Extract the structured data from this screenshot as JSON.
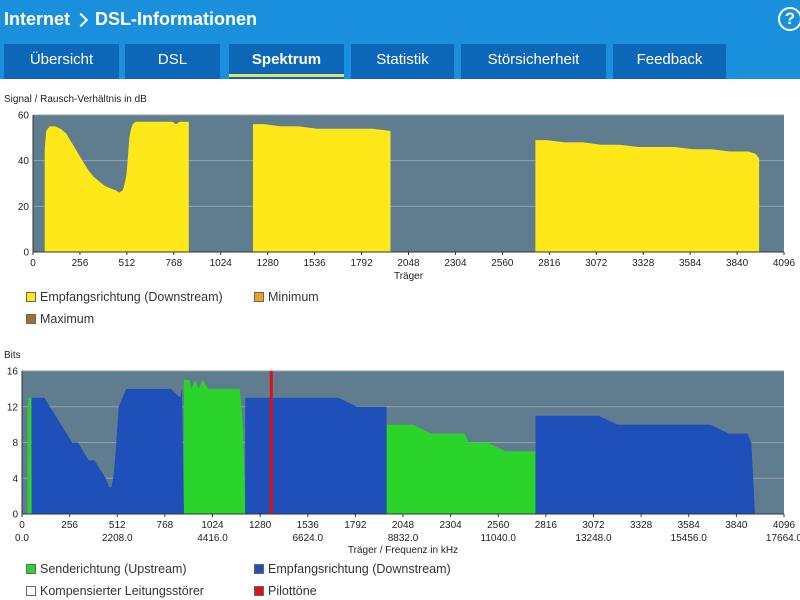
{
  "header": {
    "breadcrumb_root": "Internet",
    "breadcrumb_page": "DSL-Informationen",
    "help_label": "?"
  },
  "tabs": [
    {
      "label": "Übersicht",
      "active": false
    },
    {
      "label": "DSL",
      "active": false
    },
    {
      "label": "Spektrum",
      "active": true
    },
    {
      "label": "Statistik",
      "active": false
    },
    {
      "label": "Störsicherheit",
      "active": false
    },
    {
      "label": "Feedback",
      "active": false
    }
  ],
  "legend_snr": {
    "downstream": "Empfangsrichtung (Downstream)",
    "minimum": "Minimum",
    "maximum": "Maximum"
  },
  "legend_bits": {
    "upstream": "Senderichtung (Upstream)",
    "downstream": "Empfangsrichtung (Downstream)",
    "compensated": "Kompensierter Leitungsstörer",
    "pilot": "Pilottöne"
  },
  "colors": {
    "header": "#1a8fdc",
    "tab": "#0d67b9",
    "plot_bg": "#607d8f",
    "snr_fill": "#ffe81a",
    "minimum": "#f0a020",
    "maximum": "#a07030",
    "downstream": "#1f4fb8",
    "upstream": "#2ad42a",
    "compensated": "#ffffff",
    "pilot": "#e01010"
  },
  "chart_data": [
    {
      "type": "area",
      "title": "Signal / Rausch-Verhältnis in dB",
      "xlabel": "Träger",
      "xlim": [
        0,
        4096
      ],
      "ylim": [
        0,
        60
      ],
      "x_ticks": [
        0,
        256,
        512,
        768,
        1024,
        1280,
        1536,
        1792,
        2048,
        2304,
        2560,
        2816,
        3072,
        3328,
        3584,
        3840,
        4096
      ],
      "y_ticks": [
        0,
        20,
        40,
        60
      ],
      "series": [
        {
          "name": "Empfangsrichtung (Downstream)",
          "segments": [
            [
              [
                64,
                0
              ],
              [
                64,
                45
              ],
              [
                72,
                53
              ],
              [
                90,
                55
              ],
              [
                120,
                55
              ],
              [
                150,
                54
              ],
              [
                180,
                52
              ],
              [
                210,
                48
              ],
              [
                240,
                44
              ],
              [
                270,
                40
              ],
              [
                300,
                36
              ],
              [
                330,
                33
              ],
              [
                360,
                31
              ],
              [
                390,
                29
              ],
              [
                420,
                28
              ],
              [
                450,
                27
              ],
              [
                470,
                26
              ],
              [
                490,
                27
              ],
              [
                500,
                30
              ],
              [
                510,
                34
              ],
              [
                518,
                42
              ],
              [
                525,
                50
              ],
              [
                535,
                54
              ],
              [
                545,
                56
              ],
              [
                560,
                57
              ],
              [
                600,
                57
              ],
              [
                650,
                57
              ],
              [
                700,
                57
              ],
              [
                760,
                57
              ],
              [
                780,
                56
              ],
              [
                800,
                57
              ],
              [
                850,
                57
              ],
              [
                850,
                0
              ]
            ],
            [
              [
                1200,
                0
              ],
              [
                1200,
                56
              ],
              [
                1260,
                56
              ],
              [
                1350,
                55
              ],
              [
                1450,
                55
              ],
              [
                1550,
                54
              ],
              [
                1650,
                54
              ],
              [
                1750,
                54
              ],
              [
                1850,
                54
              ],
              [
                1950,
                53
              ],
              [
                1950,
                0
              ]
            ],
            [
              [
                2740,
                0
              ],
              [
                2740,
                49
              ],
              [
                2800,
                49
              ],
              [
                2900,
                48
              ],
              [
                3000,
                48
              ],
              [
                3100,
                47
              ],
              [
                3200,
                47
              ],
              [
                3300,
                46
              ],
              [
                3400,
                46
              ],
              [
                3500,
                46
              ],
              [
                3600,
                45
              ],
              [
                3700,
                45
              ],
              [
                3800,
                44
              ],
              [
                3900,
                44
              ],
              [
                3940,
                43
              ],
              [
                3960,
                41
              ],
              [
                3960,
                0
              ]
            ]
          ]
        }
      ]
    },
    {
      "type": "area",
      "title": "Bits",
      "xlabel": "Träger / Frequenz in kHz",
      "xlim": [
        0,
        4096
      ],
      "ylim": [
        0,
        16
      ],
      "x_ticks": [
        0,
        256,
        512,
        768,
        1024,
        1280,
        1536,
        1792,
        2048,
        2304,
        2560,
        2816,
        3072,
        3328,
        3584,
        3840,
        4096
      ],
      "x_freq_ticks": [
        "0.0",
        "2208.0",
        "4416.0",
        "6624.0",
        "8832.0",
        "11040.0",
        "13248.0",
        "15456.0",
        "17664.0"
      ],
      "y_ticks": [
        0,
        4,
        8,
        12,
        16
      ],
      "pilot_tone_x": 1340,
      "series": [
        {
          "name": "Senderichtung (Upstream)",
          "segments": [
            [
              [
                30,
                0
              ],
              [
                30,
                12
              ],
              [
                35,
                13
              ],
              [
                48,
                13
              ],
              [
                52,
                0
              ]
            ],
            [
              [
                870,
                0
              ],
              [
                870,
                15
              ],
              [
                900,
                15
              ],
              [
                910,
                14
              ],
              [
                930,
                15
              ],
              [
                950,
                14
              ],
              [
                970,
                15
              ],
              [
                1000,
                14
              ],
              [
                1100,
                14
              ],
              [
                1170,
                14
              ],
              [
                1180,
                12
              ],
              [
                1190,
                9
              ],
              [
                1200,
                0
              ]
            ],
            [
              [
                1960,
                0
              ],
              [
                1960,
                10
              ],
              [
                2000,
                10
              ],
              [
                2100,
                10
              ],
              [
                2200,
                9
              ],
              [
                2300,
                9
              ],
              [
                2380,
                9
              ],
              [
                2400,
                8
              ],
              [
                2500,
                8
              ],
              [
                2600,
                7
              ],
              [
                2700,
                7
              ],
              [
                2760,
                7
              ],
              [
                2760,
                0
              ]
            ]
          ]
        },
        {
          "name": "Empfangsrichtung (Downstream)",
          "segments": [
            [
              [
                52,
                0
              ],
              [
                52,
                13
              ],
              [
                80,
                13
              ],
              [
                120,
                13
              ],
              [
                150,
                12
              ],
              [
                180,
                11
              ],
              [
                210,
                10
              ],
              [
                240,
                9
              ],
              [
                270,
                8
              ],
              [
                300,
                8
              ],
              [
                330,
                7
              ],
              [
                360,
                6
              ],
              [
                390,
                6
              ],
              [
                420,
                5
              ],
              [
                450,
                4
              ],
              [
                470,
                3
              ],
              [
                480,
                3
              ],
              [
                490,
                4
              ],
              [
                500,
                6
              ],
              [
                510,
                9
              ],
              [
                520,
                12
              ],
              [
                540,
                13
              ],
              [
                560,
                14
              ],
              [
                600,
                14
              ],
              [
                700,
                14
              ],
              [
                800,
                14
              ],
              [
                850,
                13
              ],
              [
                860,
                14
              ],
              [
                870,
                0
              ]
            ],
            [
              [
                1200,
                0
              ],
              [
                1200,
                13
              ],
              [
                1300,
                13
              ],
              [
                1400,
                13
              ],
              [
                1500,
                13
              ],
              [
                1600,
                13
              ],
              [
                1700,
                13
              ],
              [
                1800,
                12
              ],
              [
                1900,
                12
              ],
              [
                1960,
                12
              ],
              [
                1960,
                0
              ]
            ],
            [
              [
                2760,
                0
              ],
              [
                2760,
                11
              ],
              [
                2900,
                11
              ],
              [
                3000,
                11
              ],
              [
                3100,
                11
              ],
              [
                3200,
                10
              ],
              [
                3300,
                10
              ],
              [
                3400,
                10
              ],
              [
                3500,
                10
              ],
              [
                3600,
                10
              ],
              [
                3700,
                10
              ],
              [
                3800,
                9
              ],
              [
                3900,
                9
              ],
              [
                3920,
                8
              ],
              [
                3940,
                0
              ]
            ]
          ]
        }
      ]
    }
  ]
}
